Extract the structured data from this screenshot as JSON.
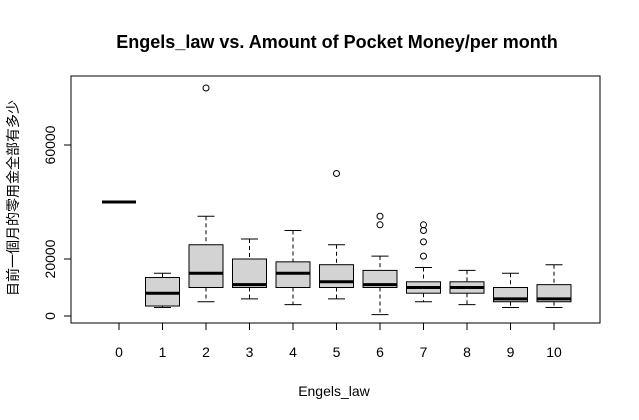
{
  "chart_data": {
    "type": "boxplot",
    "title": "Engels_law vs. Amount of Pocket Money/per month",
    "xlabel": "Engels_law",
    "ylabel": "目前一個月的零用金全部有多少",
    "ylim": [
      0,
      80000
    ],
    "yticks": [
      0,
      20000,
      60000
    ],
    "ytick_labels": [
      "0",
      "20000",
      "60000"
    ],
    "categories": [
      "0",
      "1",
      "2",
      "3",
      "4",
      "5",
      "6",
      "7",
      "8",
      "9",
      "10"
    ],
    "box_fill": "#d3d3d3",
    "boxes": [
      {
        "category": "0",
        "lower_whisker": 40000,
        "q1": 40000,
        "median": 40000,
        "q3": 40000,
        "upper_whisker": 40000,
        "outliers": []
      },
      {
        "category": "1",
        "lower_whisker": 3000,
        "q1": 3500,
        "median": 8000,
        "q3": 13500,
        "upper_whisker": 15000,
        "outliers": []
      },
      {
        "category": "2",
        "lower_whisker": 5000,
        "q1": 10000,
        "median": 15000,
        "q3": 25000,
        "upper_whisker": 35000,
        "outliers": [
          80000
        ]
      },
      {
        "category": "3",
        "lower_whisker": 6000,
        "q1": 10000,
        "median": 11000,
        "q3": 20000,
        "upper_whisker": 27000,
        "outliers": []
      },
      {
        "category": "4",
        "lower_whisker": 4000,
        "q1": 10000,
        "median": 15000,
        "q3": 19000,
        "upper_whisker": 30000,
        "outliers": []
      },
      {
        "category": "5",
        "lower_whisker": 6000,
        "q1": 10000,
        "median": 12000,
        "q3": 18000,
        "upper_whisker": 25000,
        "outliers": [
          50000
        ]
      },
      {
        "category": "6",
        "lower_whisker": 500,
        "q1": 10000,
        "median": 11000,
        "q3": 16000,
        "upper_whisker": 21000,
        "outliers": [
          35000,
          32000
        ]
      },
      {
        "category": "7",
        "lower_whisker": 5000,
        "q1": 8000,
        "median": 10000,
        "q3": 12000,
        "upper_whisker": 17000,
        "outliers": [
          32000,
          30000,
          26000,
          21000
        ]
      },
      {
        "category": "8",
        "lower_whisker": 4000,
        "q1": 8000,
        "median": 10000,
        "q3": 12000,
        "upper_whisker": 16000,
        "outliers": []
      },
      {
        "category": "9",
        "lower_whisker": 3000,
        "q1": 5000,
        "median": 6000,
        "q3": 10000,
        "upper_whisker": 15000,
        "outliers": []
      },
      {
        "category": "10",
        "lower_whisker": 3000,
        "q1": 5000,
        "median": 6000,
        "q3": 11000,
        "upper_whisker": 18000,
        "outliers": []
      }
    ]
  }
}
